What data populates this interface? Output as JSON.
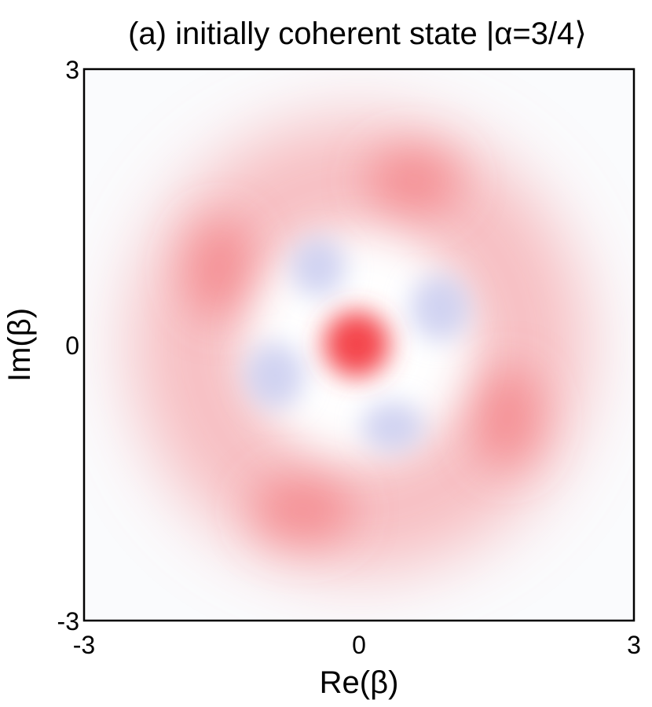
{
  "chart_data": {
    "type": "heatmap",
    "title": "(a)  initially coherent state |α=3/4⟩",
    "xlabel": "Re(β)",
    "ylabel": "Im(β)",
    "xlim": [
      -3,
      3
    ],
    "ylim": [
      -3,
      3
    ],
    "xticks": [
      -3,
      0,
      3
    ],
    "yticks": [
      -3,
      0,
      3
    ]
  }
}
